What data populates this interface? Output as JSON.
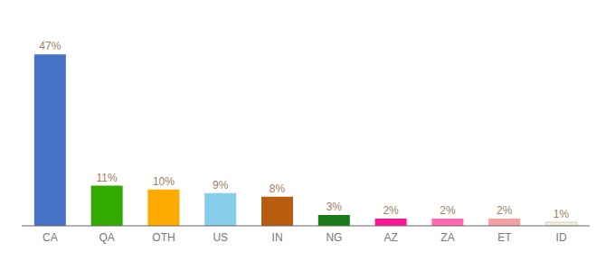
{
  "chart_data": {
    "type": "bar",
    "categories": [
      "CA",
      "QA",
      "OTH",
      "US",
      "IN",
      "NG",
      "AZ",
      "ZA",
      "ET",
      "ID"
    ],
    "values": [
      47,
      11,
      10,
      9,
      8,
      3,
      2,
      2,
      2,
      1
    ],
    "value_labels": [
      "47%",
      "11%",
      "10%",
      "9%",
      "8%",
      "3%",
      "2%",
      "2%",
      "2%",
      "1%"
    ],
    "colors": [
      "#4472c4",
      "#33aa00",
      "#ffaa00",
      "#87ceeb",
      "#b85c10",
      "#1a7a1a",
      "#ff1493",
      "#ff69b4",
      "#f4a0a0",
      "#f5f0dc"
    ],
    "ylim": [
      0,
      54
    ],
    "tick_labels": "x",
    "grid": false,
    "data_labels": true
  }
}
